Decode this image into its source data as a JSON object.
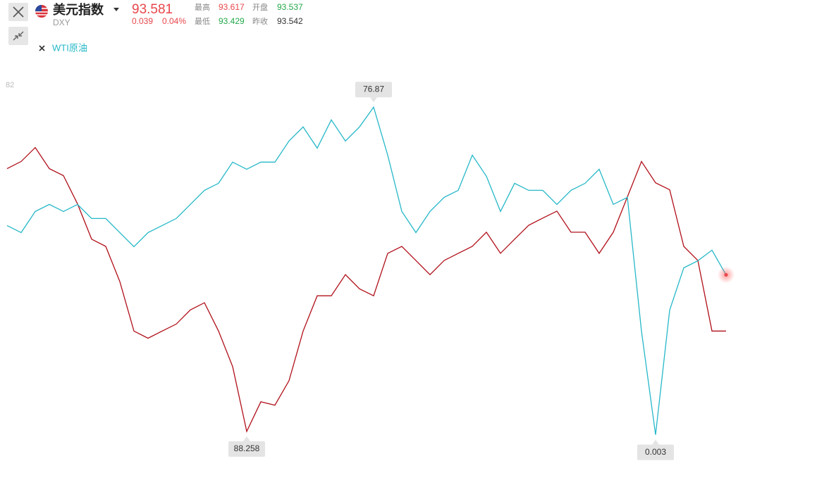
{
  "quote": {
    "symbol": "DXY",
    "price": 93.581,
    "change": 0.039,
    "change_pct": "0.04%",
    "stats": [
      {
        "label": "最高",
        "value": 93.617
      },
      {
        "label": "开盘",
        "value": 93.537
      },
      {
        "label": "最低",
        "value": 93.429
      },
      {
        "label": "昨收",
        "value": 93.542
      }
    ]
  },
  "chart_data": {
    "type": "line",
    "series": [
      {
        "name": "美元指数",
        "color": "#b0101a",
        "axis": "y2",
        "values": [
          102.19,
          102.57,
          103.31,
          102.19,
          101.82,
          100.32,
          98.45,
          98.07,
          96.2,
          93.58,
          93.2,
          93.58,
          93.95,
          94.7,
          95.08,
          93.58,
          91.7,
          88.258,
          89.83,
          89.65,
          90.95,
          93.58,
          95.45,
          95.45,
          96.57,
          95.82,
          95.45,
          97.7,
          98.07,
          97.32,
          96.57,
          97.32,
          97.7,
          98.07,
          98.82,
          97.7,
          98.45,
          99.19,
          99.57,
          99.94,
          98.82,
          98.82,
          97.7,
          98.82,
          100.69,
          102.57,
          101.44,
          101.07,
          98.07,
          97.32,
          93.58,
          93.58
        ]
      },
      {
        "name": "WTI原油",
        "color": "#26b8c8",
        "axis": "y",
        "values": [
          49.09,
          47.44,
          52.4,
          54.05,
          52.4,
          54.05,
          50.74,
          50.74,
          47.44,
          44.13,
          47.44,
          49.09,
          50.74,
          54.05,
          57.36,
          59.01,
          63.97,
          62.31,
          63.97,
          63.97,
          68.93,
          72.23,
          67.27,
          73.88,
          68.93,
          72.23,
          76.87,
          65.62,
          52.4,
          47.44,
          52.4,
          55.7,
          57.36,
          65.62,
          60.66,
          52.4,
          59.01,
          57.36,
          57.36,
          54.05,
          57.36,
          59.01,
          62.31,
          54.05,
          55.7,
          24.3,
          0.003,
          29.26,
          39.17,
          40.83,
          43.31,
          37.52
        ]
      }
    ],
    "ylim": [
      -7,
      85.5
    ],
    "yticks": [
      82
    ],
    "y2lim": [
      86.5,
      107.4
    ]
  }
}
